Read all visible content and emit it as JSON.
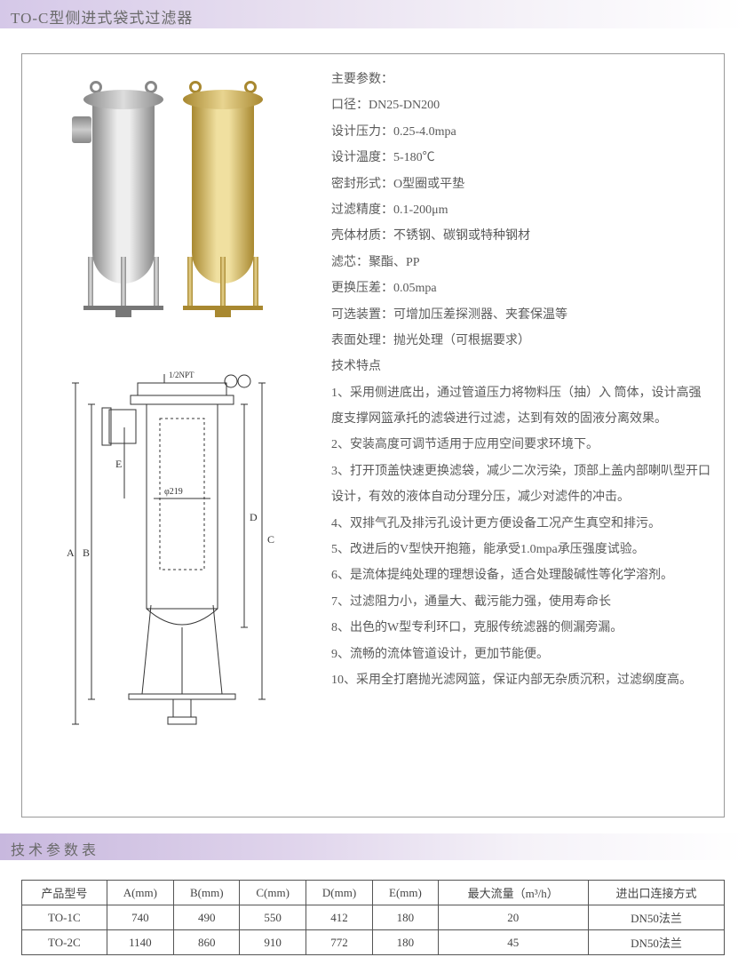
{
  "header": {
    "title": "TO-C型侧进式袋式过滤器"
  },
  "specs": {
    "title": "主要参数：",
    "items": [
      "口径：DN25-DN200",
      "设计压力：0.25-4.0mpa",
      "设计温度：5-180℃",
      "密封形式：O型圈或平垫",
      "过滤精度：0.1-200μm",
      "壳体材质：不锈钢、碳钢或特种钢材",
      "滤芯：聚酯、PP",
      "更换压差：0.05mpa",
      "可选装置：可增加压差探测器、夹套保温等",
      "表面处理：抛光处理（可根据要求）"
    ],
    "features_title": "技术特点",
    "features": [
      "1、采用侧进底出，通过管道压力将物料压（抽）入 筒体，设计高强度支撑网篮承托的滤袋进行过滤，达到有效的固液分离效果。",
      "2、安装高度可调节适用于应用空间要求环境下。",
      "3、打开顶盖快速更换滤袋，减少二次污染，顶部上盖内部喇叭型开口设计，有效的液体自动分理分压，减少对滤件的冲击。",
      "4、双排气孔及排污孔设计更方便设备工况产生真空和排污。",
      "5、改进后的V型快开抱箍，能承受1.0mpa承压强度试验。",
      "6、是流体提纯处理的理想设备，适合处理酸碱性等化学溶剂。",
      "7、过滤阻力小，通量大、截污能力强，使用寿命长",
      "8、出色的W型专利环口，克服传统滤器的侧漏旁漏。",
      "9、流畅的流体管道设计，更加节能便。",
      "10、采用全打磨抛光滤网篮，保证内部无杂质沉积，过滤纲度高。"
    ]
  },
  "diagram": {
    "labels": {
      "A": "A",
      "B": "B",
      "C": "C",
      "D": "D",
      "E": "E",
      "port": "1/2NPT",
      "dia": "φ219"
    }
  },
  "param_section": {
    "title": "技术参数表"
  },
  "table": {
    "columns": [
      "产品型号",
      "A(mm)",
      "B(mm)",
      "C(mm)",
      "D(mm)",
      "E(mm)",
      "最大流量（m³/h）",
      "进出口连接方式"
    ],
    "rows": [
      [
        "TO-1C",
        "740",
        "490",
        "550",
        "412",
        "180",
        "20",
        "DN50法兰"
      ],
      [
        "TO-2C",
        "1140",
        "860",
        "910",
        "772",
        "180",
        "45",
        "DN50法兰"
      ]
    ]
  },
  "colors": {
    "header_gradient_start": "#d5c8e8",
    "text": "#5a5a5a",
    "border": "#555555"
  }
}
